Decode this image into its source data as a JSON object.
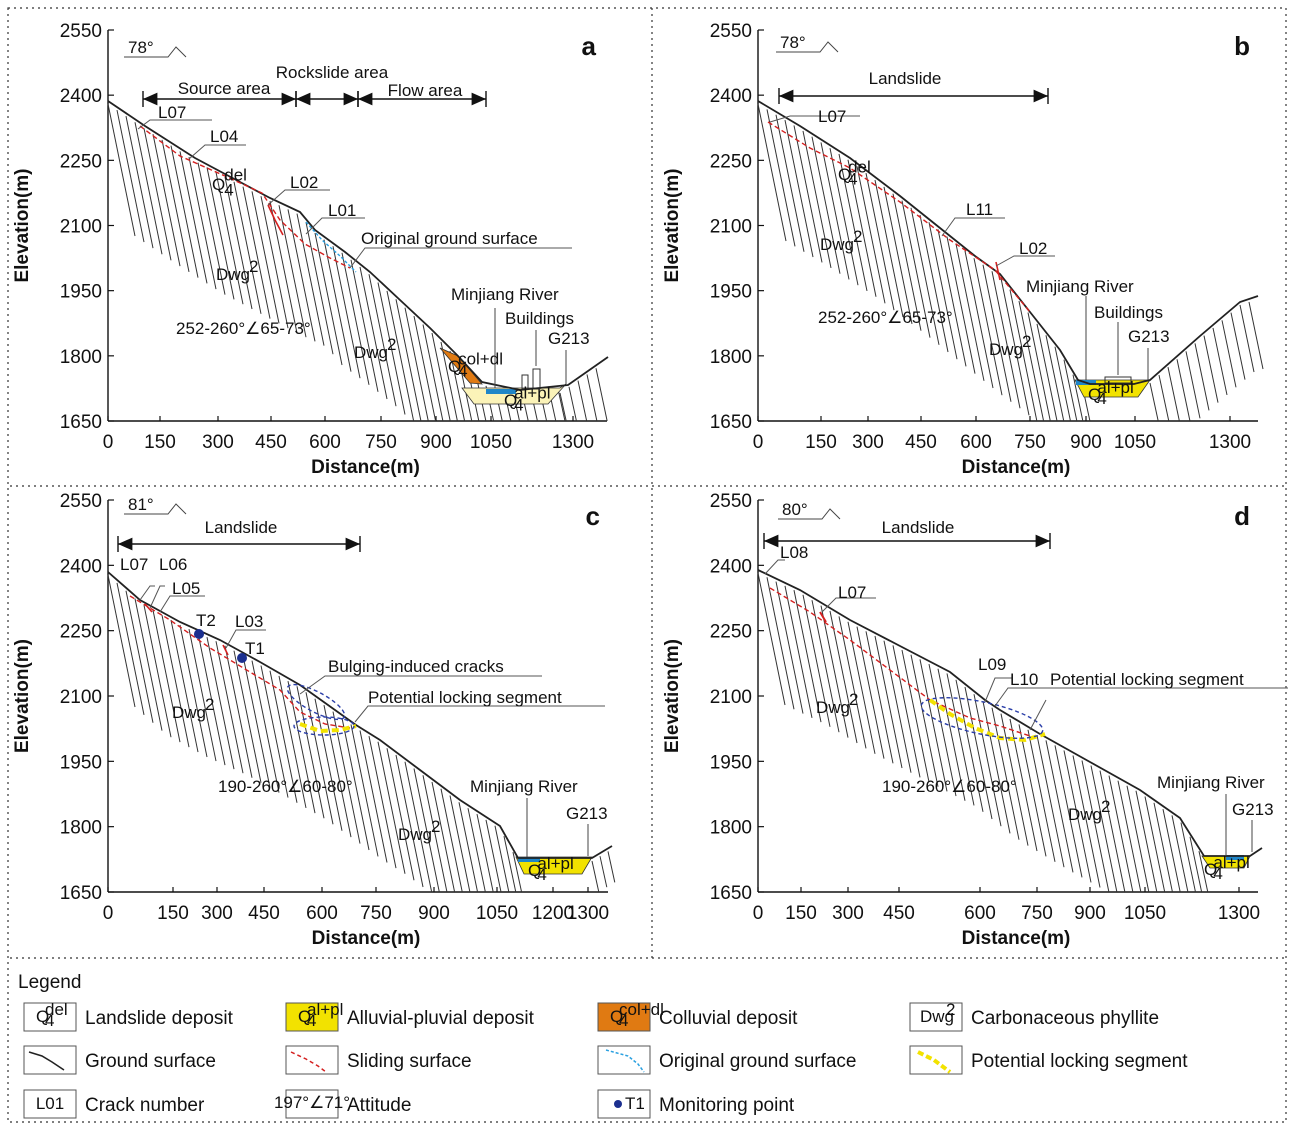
{
  "axes": {
    "x_label": "Distance(m)",
    "y_label": "Elevation(m)",
    "y_ticks": [
      "2550",
      "2400",
      "2250",
      "2100",
      "1950",
      "1800",
      "1650"
    ]
  },
  "panels": [
    {
      "letter": "a",
      "x_ticks": [
        "0",
        "150",
        "300",
        "450",
        "600",
        "750",
        "900",
        "1050",
        "1300"
      ],
      "dip": "78°",
      "zones": [
        "Source area",
        "Rockslide area",
        "Flow area"
      ],
      "cracks": [
        "L07",
        "L04",
        "L02",
        "L01"
      ],
      "labels": {
        "qdel": "Q",
        "qdel_sub": "4",
        "qdel_sup": "del",
        "original_ground": "Original ground surface",
        "dwg_a": "Dwg",
        "dwg_b": "Dwg",
        "dwg_sup": "2",
        "attitude": "252-260°∠65-73°",
        "river": "Minjiang River",
        "buildings": "Buildings",
        "road": "G213",
        "qcol": "Q",
        "qcol_sub": "4",
        "qcol_sup": "col+dl",
        "qal": "Q",
        "qal_sub": "4",
        "qal_sup": "al+pl"
      }
    },
    {
      "letter": "b",
      "x_ticks": [
        "0",
        "150",
        "300",
        "450",
        "600",
        "750",
        "900",
        "1050",
        "1300"
      ],
      "dip": "78°",
      "zone": "Landslide",
      "cracks": [
        "L07",
        "L11",
        "L02"
      ],
      "labels": {
        "qdel": "Q",
        "qdel_sub": "4",
        "qdel_sup": "del",
        "dwg_a": "Dwg",
        "dwg_b": "Dwg",
        "dwg_sup": "2",
        "attitude": "252-260°∠65-73°",
        "river": "Minjiang River",
        "buildings": "Buildings",
        "road": "G213",
        "qal": "Q",
        "qal_sub": "4",
        "qal_sup": "al+pl"
      }
    },
    {
      "letter": "c",
      "x_ticks": [
        "0",
        "150",
        "300",
        "450",
        "600",
        "750",
        "900",
        "1050",
        "1200",
        "1300"
      ],
      "dip": "81°",
      "zone": "Landslide",
      "cracks": [
        "L07",
        "L06",
        "L05",
        "L03"
      ],
      "points": [
        "T2",
        "T1"
      ],
      "labels": {
        "bulging": "Bulging-induced cracks",
        "locking": "Potential locking segment",
        "dwg_a": "Dwg",
        "dwg_b": "Dwg",
        "dwg_sup": "2",
        "attitude": "190-260°∠60-80°",
        "river": "Minjiang River",
        "road": "G213",
        "qal": "Q",
        "qal_sub": "4",
        "qal_sup": "al+pl"
      }
    },
    {
      "letter": "d",
      "x_ticks": [
        "0",
        "150",
        "300",
        "450",
        "600",
        "750",
        "900",
        "1050",
        "1300"
      ],
      "dip": "80°",
      "zone": "Landslide",
      "cracks": [
        "L08",
        "L07",
        "L09",
        "L10"
      ],
      "labels": {
        "locking": "Potential locking segment",
        "dwg_a": "Dwg",
        "dwg_b": "Dwg",
        "dwg_sup": "2",
        "attitude": "190-260°∠60-80°",
        "river": "Minjiang River",
        "road": "G213",
        "qal": "Q",
        "qal_sub": "4",
        "qal_sup": "al+pl"
      }
    }
  ],
  "legend": {
    "title": "Legend",
    "items": [
      {
        "symbol": "landslide-deposit",
        "sym_main": "Q",
        "sym_sub": "4",
        "sym_sup": "del",
        "label": "Landslide deposit"
      },
      {
        "symbol": "alluvial-pluvial-deposit",
        "sym_main": "Q",
        "sym_sub": "4",
        "sym_sup": "al+pl",
        "label": "Alluvial-pluvial deposit"
      },
      {
        "symbol": "colluvial-deposit",
        "sym_main": "Q",
        "sym_sub": "4",
        "sym_sup": "col+dl",
        "label": "Colluvial deposit"
      },
      {
        "symbol": "carbonaceous-phyllite",
        "sym_main": "Dwg",
        "sym_sub": "",
        "sym_sup": "2",
        "label": "Carbonaceous phyllite"
      },
      {
        "symbol": "ground-surface",
        "label": "Ground surface"
      },
      {
        "symbol": "sliding-surface",
        "label": "Sliding surface"
      },
      {
        "symbol": "original-ground-surface",
        "label": "Original ground surface"
      },
      {
        "symbol": "potential-locking-segment",
        "label": "Potential locking segment"
      },
      {
        "symbol": "crack-number",
        "sym_text": "L01",
        "label": "Crack number"
      },
      {
        "symbol": "attitude",
        "sym_text": "197°∠71°",
        "label": "Attitude"
      },
      {
        "symbol": "monitoring-point",
        "sym_text": "T1",
        "label": "Monitoring point"
      }
    ]
  },
  "colors": {
    "ground": "#222222",
    "sliding": "#d42020",
    "original_ground": "#2aa0e0",
    "alluvial": "#f2e200",
    "alluvial_light": "#fbf3b8",
    "colluvial": "#e07a12",
    "locking": "#f2e200",
    "ellipse": "#2a3ea8",
    "point": "#1b2f8f",
    "river": "#1f86c8"
  }
}
